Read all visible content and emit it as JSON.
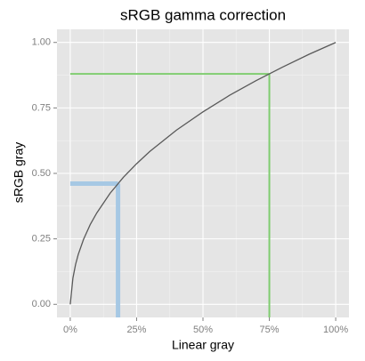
{
  "chart_data": {
    "type": "line",
    "title": "sRGB gamma correction",
    "x_label": "Linear gray",
    "y_label": "sRGB gray",
    "x": [
      0,
      1,
      2,
      3,
      5,
      7.5,
      10,
      15,
      20,
      25,
      30,
      40,
      50,
      60,
      70,
      80,
      90,
      100
    ],
    "series": [
      {
        "color": "#595959",
        "values": [
          0,
          0.1,
          0.152,
          0.19,
          0.248,
          0.304,
          0.349,
          0.424,
          0.485,
          0.537,
          0.584,
          0.665,
          0.735,
          0.798,
          0.854,
          0.906,
          0.955,
          1
        ]
      }
    ],
    "guides": [
      {
        "color": "#a6c8e4",
        "x": 18,
        "y": 0.461
      },
      {
        "color": "#7fcc6f",
        "x": 75,
        "y": 0.88
      }
    ],
    "xlim": [
      -5,
      105
    ],
    "ylim": [
      -0.05,
      1.05
    ],
    "xticks": [
      {
        "value": 0,
        "label": "0%"
      },
      {
        "value": 25,
        "label": "25%"
      },
      {
        "value": 50,
        "label": "50%"
      },
      {
        "value": 75,
        "label": "75%"
      },
      {
        "value": 100,
        "label": "100%"
      }
    ],
    "yticks": [
      {
        "value": 0,
        "label": "0.00"
      },
      {
        "value": 0.25,
        "label": "0.25"
      },
      {
        "value": 0.5,
        "label": "0.50"
      },
      {
        "value": 0.75,
        "label": "0.75"
      },
      {
        "value": 1,
        "label": "1.00"
      }
    ],
    "grid": true
  }
}
